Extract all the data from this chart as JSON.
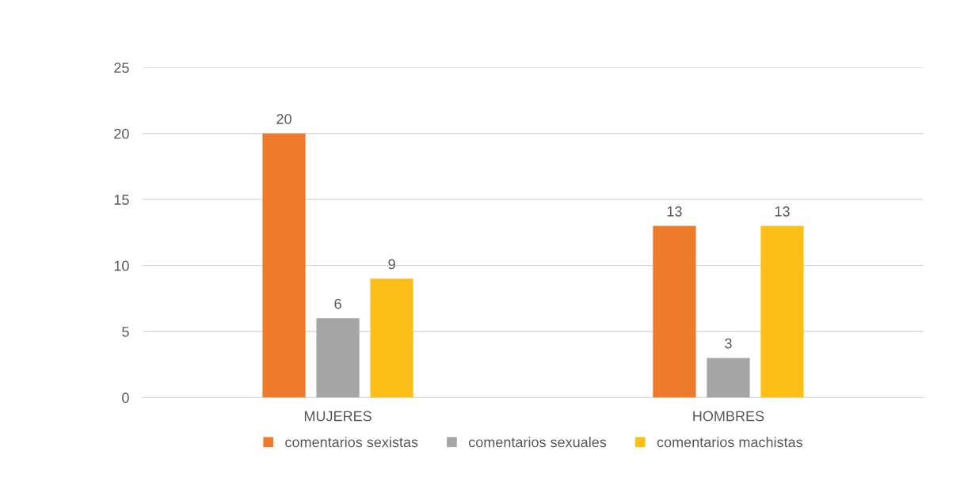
{
  "chart_data": {
    "type": "bar",
    "categories": [
      "MUJERES",
      "HOMBRES"
    ],
    "series": [
      {
        "name": "comentarios sexistas",
        "color": "#ee7a2c",
        "values": [
          20,
          13
        ]
      },
      {
        "name": "comentarios sexuales",
        "color": "#a5a5a5",
        "values": [
          6,
          3
        ]
      },
      {
        "name": "comentarios machistas",
        "color": "#fcbf17",
        "values": [
          9,
          13
        ]
      }
    ],
    "ylim": [
      0,
      25
    ],
    "yticks": [
      0,
      5,
      10,
      15,
      20,
      25
    ],
    "grid": "y",
    "legend": "bottom",
    "data_labels": true
  }
}
